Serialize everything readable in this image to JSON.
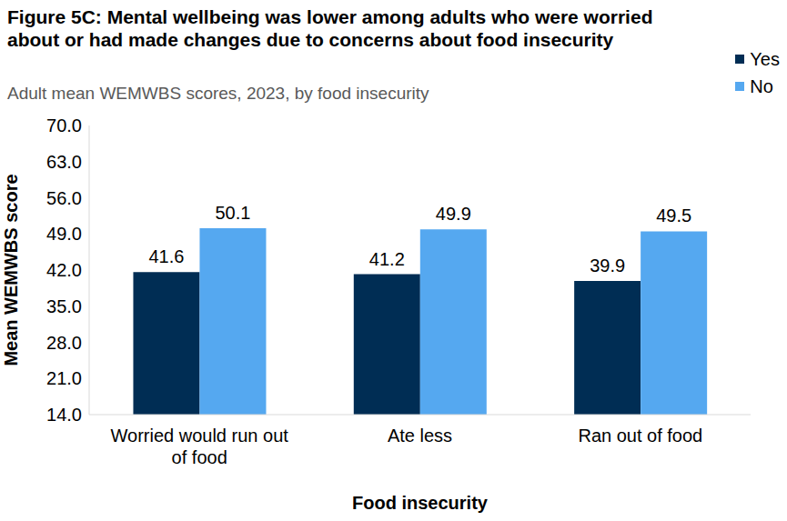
{
  "chart_data": {
    "type": "bar",
    "title": "Figure 5C: Mental wellbeing was lower among adults who were worried about or had made changes due to concerns about food insecurity",
    "subtitle": "Adult mean WEMWBS scores, 2023, by food insecurity",
    "x_label": "Food insecurity",
    "y_label": "Mean WEMWBS score",
    "categories": [
      "Worried would run out of food",
      "Ate less",
      "Ran out of food"
    ],
    "series": [
      {
        "name": "Yes",
        "color": "#002d54",
        "values": [
          41.6,
          41.2,
          39.9
        ]
      },
      {
        "name": "No",
        "color": "#55a8f0",
        "values": [
          50.1,
          49.9,
          49.5
        ]
      }
    ],
    "ylim": [
      14,
      70
    ],
    "yticks": [
      {
        "value": 14,
        "label": "14.0"
      },
      {
        "value": 21,
        "label": "21.0"
      },
      {
        "value": 28,
        "label": "28.0"
      },
      {
        "value": 35,
        "label": "35.0"
      },
      {
        "value": 42,
        "label": "42.0"
      },
      {
        "value": 49,
        "label": "49.0"
      },
      {
        "value": 56,
        "label": "56.0"
      },
      {
        "value": 63,
        "label": "63.0"
      },
      {
        "value": 70,
        "label": "70.0"
      }
    ],
    "grid": false,
    "legend": "upper right",
    "data_labels": true
  }
}
